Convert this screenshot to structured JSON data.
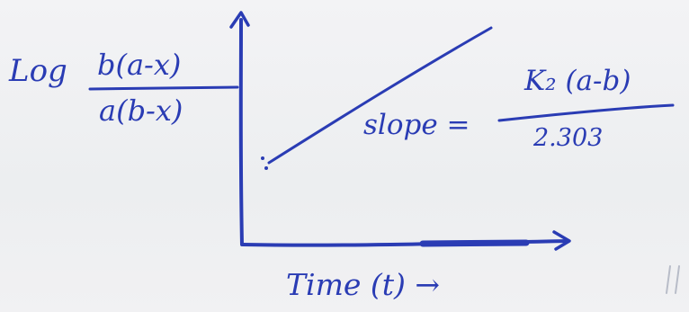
{
  "diagram": {
    "y_axis_label": {
      "prefix": "Log",
      "numerator": "b(a-x)",
      "denominator": "a(b-x)"
    },
    "x_axis_label": "Time (t) →",
    "line": {
      "slope_label": "slope =",
      "slope_numerator": "K₂ (a-b)",
      "slope_denominator": "2.303"
    }
  },
  "colors": {
    "ink": "#2a3cb4",
    "paper": "#efeff1"
  }
}
